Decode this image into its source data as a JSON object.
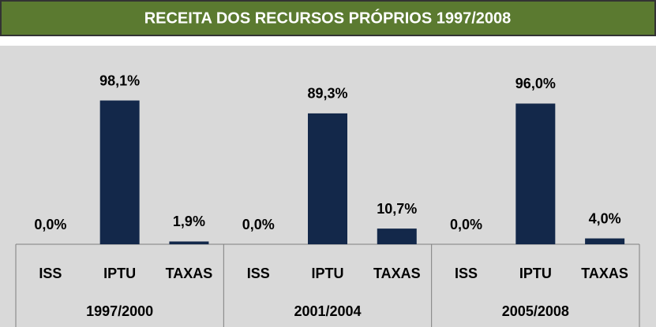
{
  "chart_data": {
    "type": "bar",
    "title": "RECEITA DOS RECURSOS PRÓPRIOS 1997/2008",
    "color": "#13284a",
    "ylim": [
      0,
      100
    ],
    "groups": [
      {
        "name": "1997/2000",
        "categories": [
          "ISS",
          "IPTU",
          "TAXAS"
        ],
        "values": [
          0,
          98.1,
          1.9
        ],
        "value_labels": [
          "0,0%",
          "98,1%",
          "1,9%"
        ]
      },
      {
        "name": "2001/2004",
        "categories": [
          "ISS",
          "IPTU",
          "TAXAS"
        ],
        "values": [
          0,
          89.3,
          10.7
        ],
        "value_labels": [
          "0,0%",
          "89,3%",
          "10,7%"
        ]
      },
      {
        "name": "2005/2008",
        "categories": [
          "ISS",
          "IPTU",
          "TAXAS"
        ],
        "values": [
          0,
          96.0,
          4.0
        ],
        "value_labels": [
          "0,0%",
          "96,0%",
          "4,0%"
        ]
      }
    ]
  }
}
